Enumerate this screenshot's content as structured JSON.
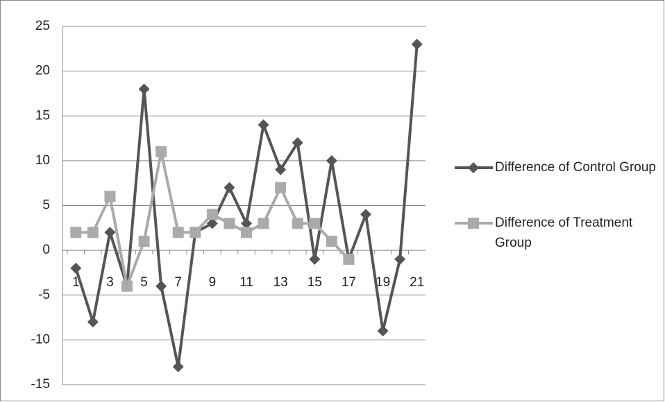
{
  "chart_data": {
    "type": "line",
    "categories": [
      1,
      null,
      3,
      null,
      5,
      null,
      7,
      null,
      9,
      null,
      11,
      null,
      13,
      null,
      15,
      null,
      17,
      null,
      19,
      null,
      21
    ],
    "series": [
      {
        "name": "Difference of Control Group",
        "color": "#555555",
        "marker": "diamond",
        "values": [
          -2,
          -8,
          2,
          -4,
          18,
          -4,
          -13,
          2,
          3,
          7,
          3,
          14,
          9,
          12,
          -1,
          10,
          -1,
          4,
          -9,
          -1,
          23
        ]
      },
      {
        "name": "Difference of Treatment Group",
        "color": "#aaaaaa",
        "marker": "square",
        "values": [
          2,
          2,
          6,
          -4,
          1,
          11,
          2,
          2,
          4,
          3,
          2,
          3,
          7,
          3,
          3,
          1,
          -1,
          null,
          null,
          null,
          null
        ]
      }
    ],
    "ylim": [
      -15,
      25
    ],
    "yticks": [
      -15,
      -10,
      -5,
      0,
      5,
      10,
      15,
      20,
      25
    ],
    "grid": true,
    "legend": "right"
  }
}
